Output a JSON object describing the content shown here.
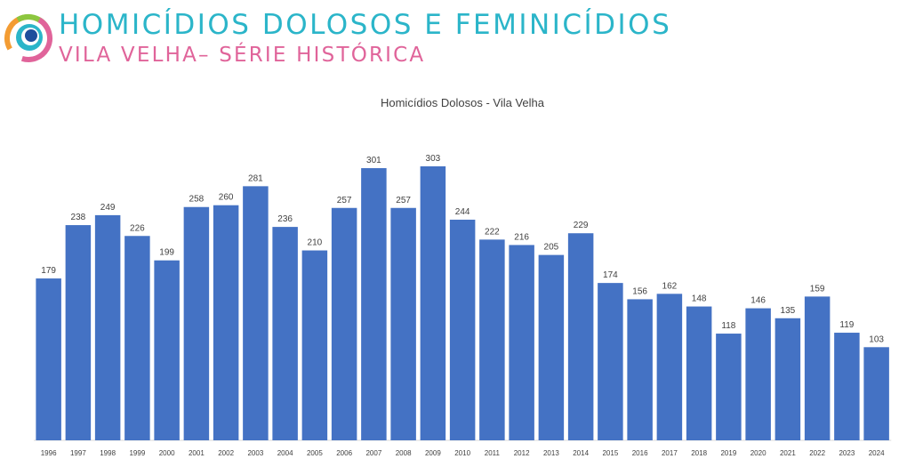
{
  "header": {
    "title": "HOMICÍDIOS DOLOSOS E FEMINICÍDIOS",
    "subtitle": "VILA VELHA– SÉRIE HISTÓRICA",
    "logo": "circular-eye-logo",
    "title_color": "#2bb5c9",
    "subtitle_color": "#e0649a"
  },
  "chart_data": {
    "type": "bar",
    "title": "Homicídios Dolosos - Vila Velha",
    "xlabel": "",
    "ylabel": "",
    "bar_color": "#4472c4",
    "grid": false,
    "ylim": [
      0,
      330
    ],
    "categories": [
      "1996",
      "1997",
      "1998",
      "1999",
      "2000",
      "2001",
      "2002",
      "2003",
      "2004",
      "2005",
      "2006",
      "2007",
      "2008",
      "2009",
      "2010",
      "2011",
      "2012",
      "2013",
      "2014",
      "2015",
      "2016",
      "2017",
      "2018",
      "2019",
      "2020",
      "2021",
      "2022",
      "2023",
      "2024"
    ],
    "values": [
      179,
      238,
      249,
      226,
      199,
      258,
      260,
      281,
      236,
      210,
      257,
      301,
      257,
      303,
      244,
      222,
      216,
      205,
      229,
      174,
      156,
      162,
      148,
      118,
      146,
      135,
      159,
      119,
      103
    ]
  }
}
